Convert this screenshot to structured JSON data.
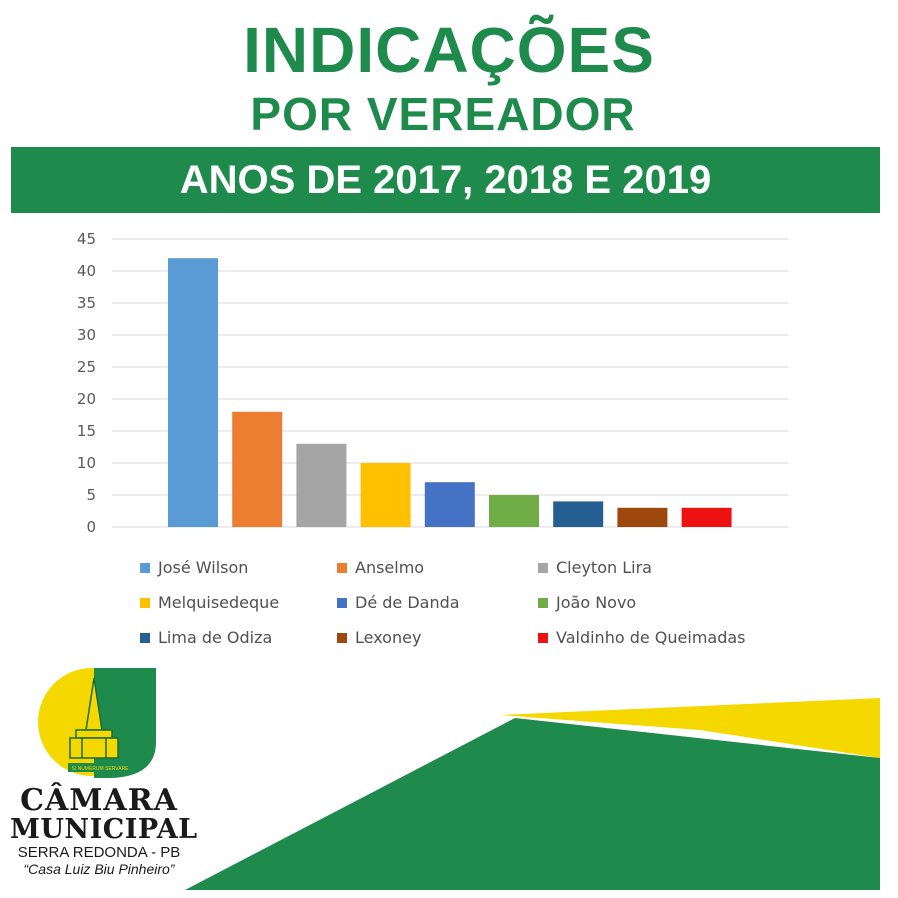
{
  "header": {
    "title_line1": "INDICAÇÕES",
    "title_line2": "POR VEREADOR",
    "banner": "ANOS DE 2017, 2018 E 2019"
  },
  "chart_data": {
    "type": "bar",
    "categories": [
      "José Wilson",
      "Anselmo",
      "Cleyton Lira",
      "Melquisedeque",
      "Dé de Danda",
      "João Novo",
      "Lima de Odiza",
      "Lexoney",
      "Valdinho de Queimadas"
    ],
    "values": [
      42,
      18,
      13,
      10,
      7,
      5,
      4,
      3,
      3
    ],
    "colors": [
      "#5b9bd5",
      "#ed7d31",
      "#a5a5a5",
      "#ffc000",
      "#4472c4",
      "#70ad47",
      "#255e91",
      "#9e480e",
      "#ee1111"
    ],
    "title": "",
    "xlabel": "",
    "ylabel": "",
    "ylim": [
      0,
      45
    ],
    "yticks": [
      "0",
      "5",
      "10",
      "15",
      "20",
      "25",
      "30",
      "35",
      "40",
      "45"
    ],
    "grid": true,
    "legend_position": "bottom"
  },
  "logo": {
    "motto": "SI NUMERUM SERVARE",
    "line1": "CÂMARA",
    "line2": "MUNICIPAL",
    "line3": "SERRA REDONDA - PB",
    "line4": "“Casa Luiz Biu Pinheiro”"
  },
  "colors": {
    "brand_green": "#1e8a4c",
    "brand_yellow": "#f5d800"
  }
}
